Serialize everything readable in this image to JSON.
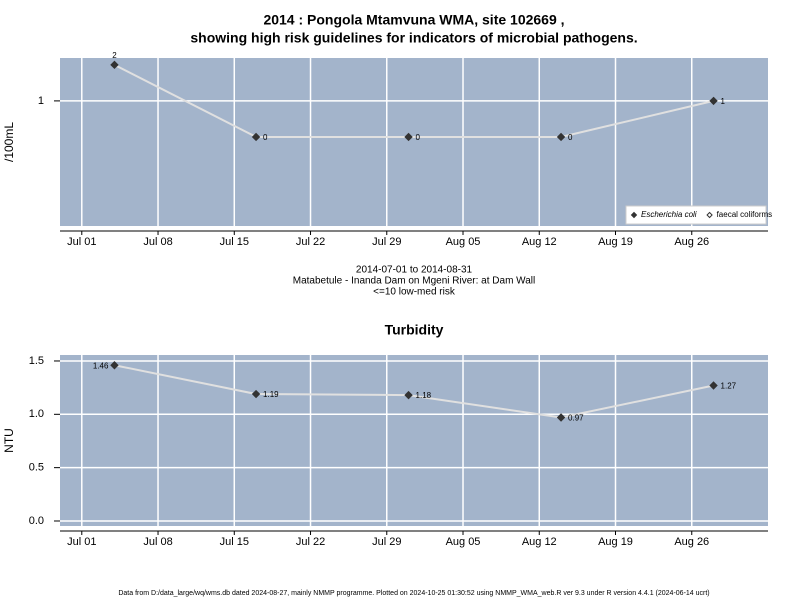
{
  "chart_data": [
    {
      "type": "line",
      "title": [
        "2014 : Pongola Mtamvuna WMA, site 102669 ,",
        "showing high risk guidelines for indicators of microbial pathogens."
      ],
      "y_label": "/100mL",
      "x": [
        "Jul 04",
        "Jul 17",
        "Jul 31",
        "Aug 14",
        "Aug 28"
      ],
      "series": [
        {
          "name": "Escherichia coli",
          "color": "#333333",
          "marker": "filled-diamond",
          "values": [
            2,
            0,
            0,
            0,
            1
          ]
        },
        {
          "name": "faecal coliforms",
          "color": "#333333",
          "marker": "open-diamond",
          "values": [
            null,
            null,
            null,
            null,
            null
          ]
        }
      ],
      "xlim": [
        "Jun 29",
        "Sep 02"
      ],
      "xticks": [
        "Jul 01",
        "Jul 08",
        "Jul 15",
        "Jul 22",
        "Jul 29",
        "Aug 05",
        "Aug 12",
        "Aug 19",
        "Aug 26"
      ],
      "ylim": [
        -2.47,
        2.19
      ],
      "yticks": [
        1
      ],
      "grid": true,
      "legend": "bottom-right",
      "notes": [
        "2014-07-01 to 2014-08-31",
        "Matabetule - Inanda Dam on Mgeni River: at Dam Wall",
        "<=10 low-med risk"
      ]
    },
    {
      "type": "line",
      "title": "Turbidity",
      "y_label": "NTU",
      "x": [
        "Jul 04",
        "Jul 17",
        "Jul 31",
        "Aug 14",
        "Aug 28"
      ],
      "series": [
        {
          "name": "Turbidity",
          "color": "#333333",
          "marker": "filled-diamond",
          "values": [
            1.46,
            1.19,
            1.18,
            0.97,
            1.27
          ]
        }
      ],
      "xlim": [
        "Jun 29",
        "Sep 02"
      ],
      "xticks": [
        "Jul 01",
        "Jul 08",
        "Jul 15",
        "Jul 22",
        "Jul 29",
        "Aug 05",
        "Aug 12",
        "Aug 19",
        "Aug 26"
      ],
      "ylim": [
        -0.047,
        1.556
      ],
      "yticks": [
        {
          "value": 0,
          "label": "0.0"
        },
        0.5,
        {
          "value": 1,
          "label": "1.0"
        },
        1.5
      ],
      "grid": true
    }
  ],
  "footer": "Data from D:/data_large/wq/wms.db dated 2024-08-27, mainly NMMP programme. Plotted on 2024-10-25 01:30:52 using NMMP_WMA_web.R ver 9.3 under R version 4.4.1 (2024-06-14 ucrt)"
}
